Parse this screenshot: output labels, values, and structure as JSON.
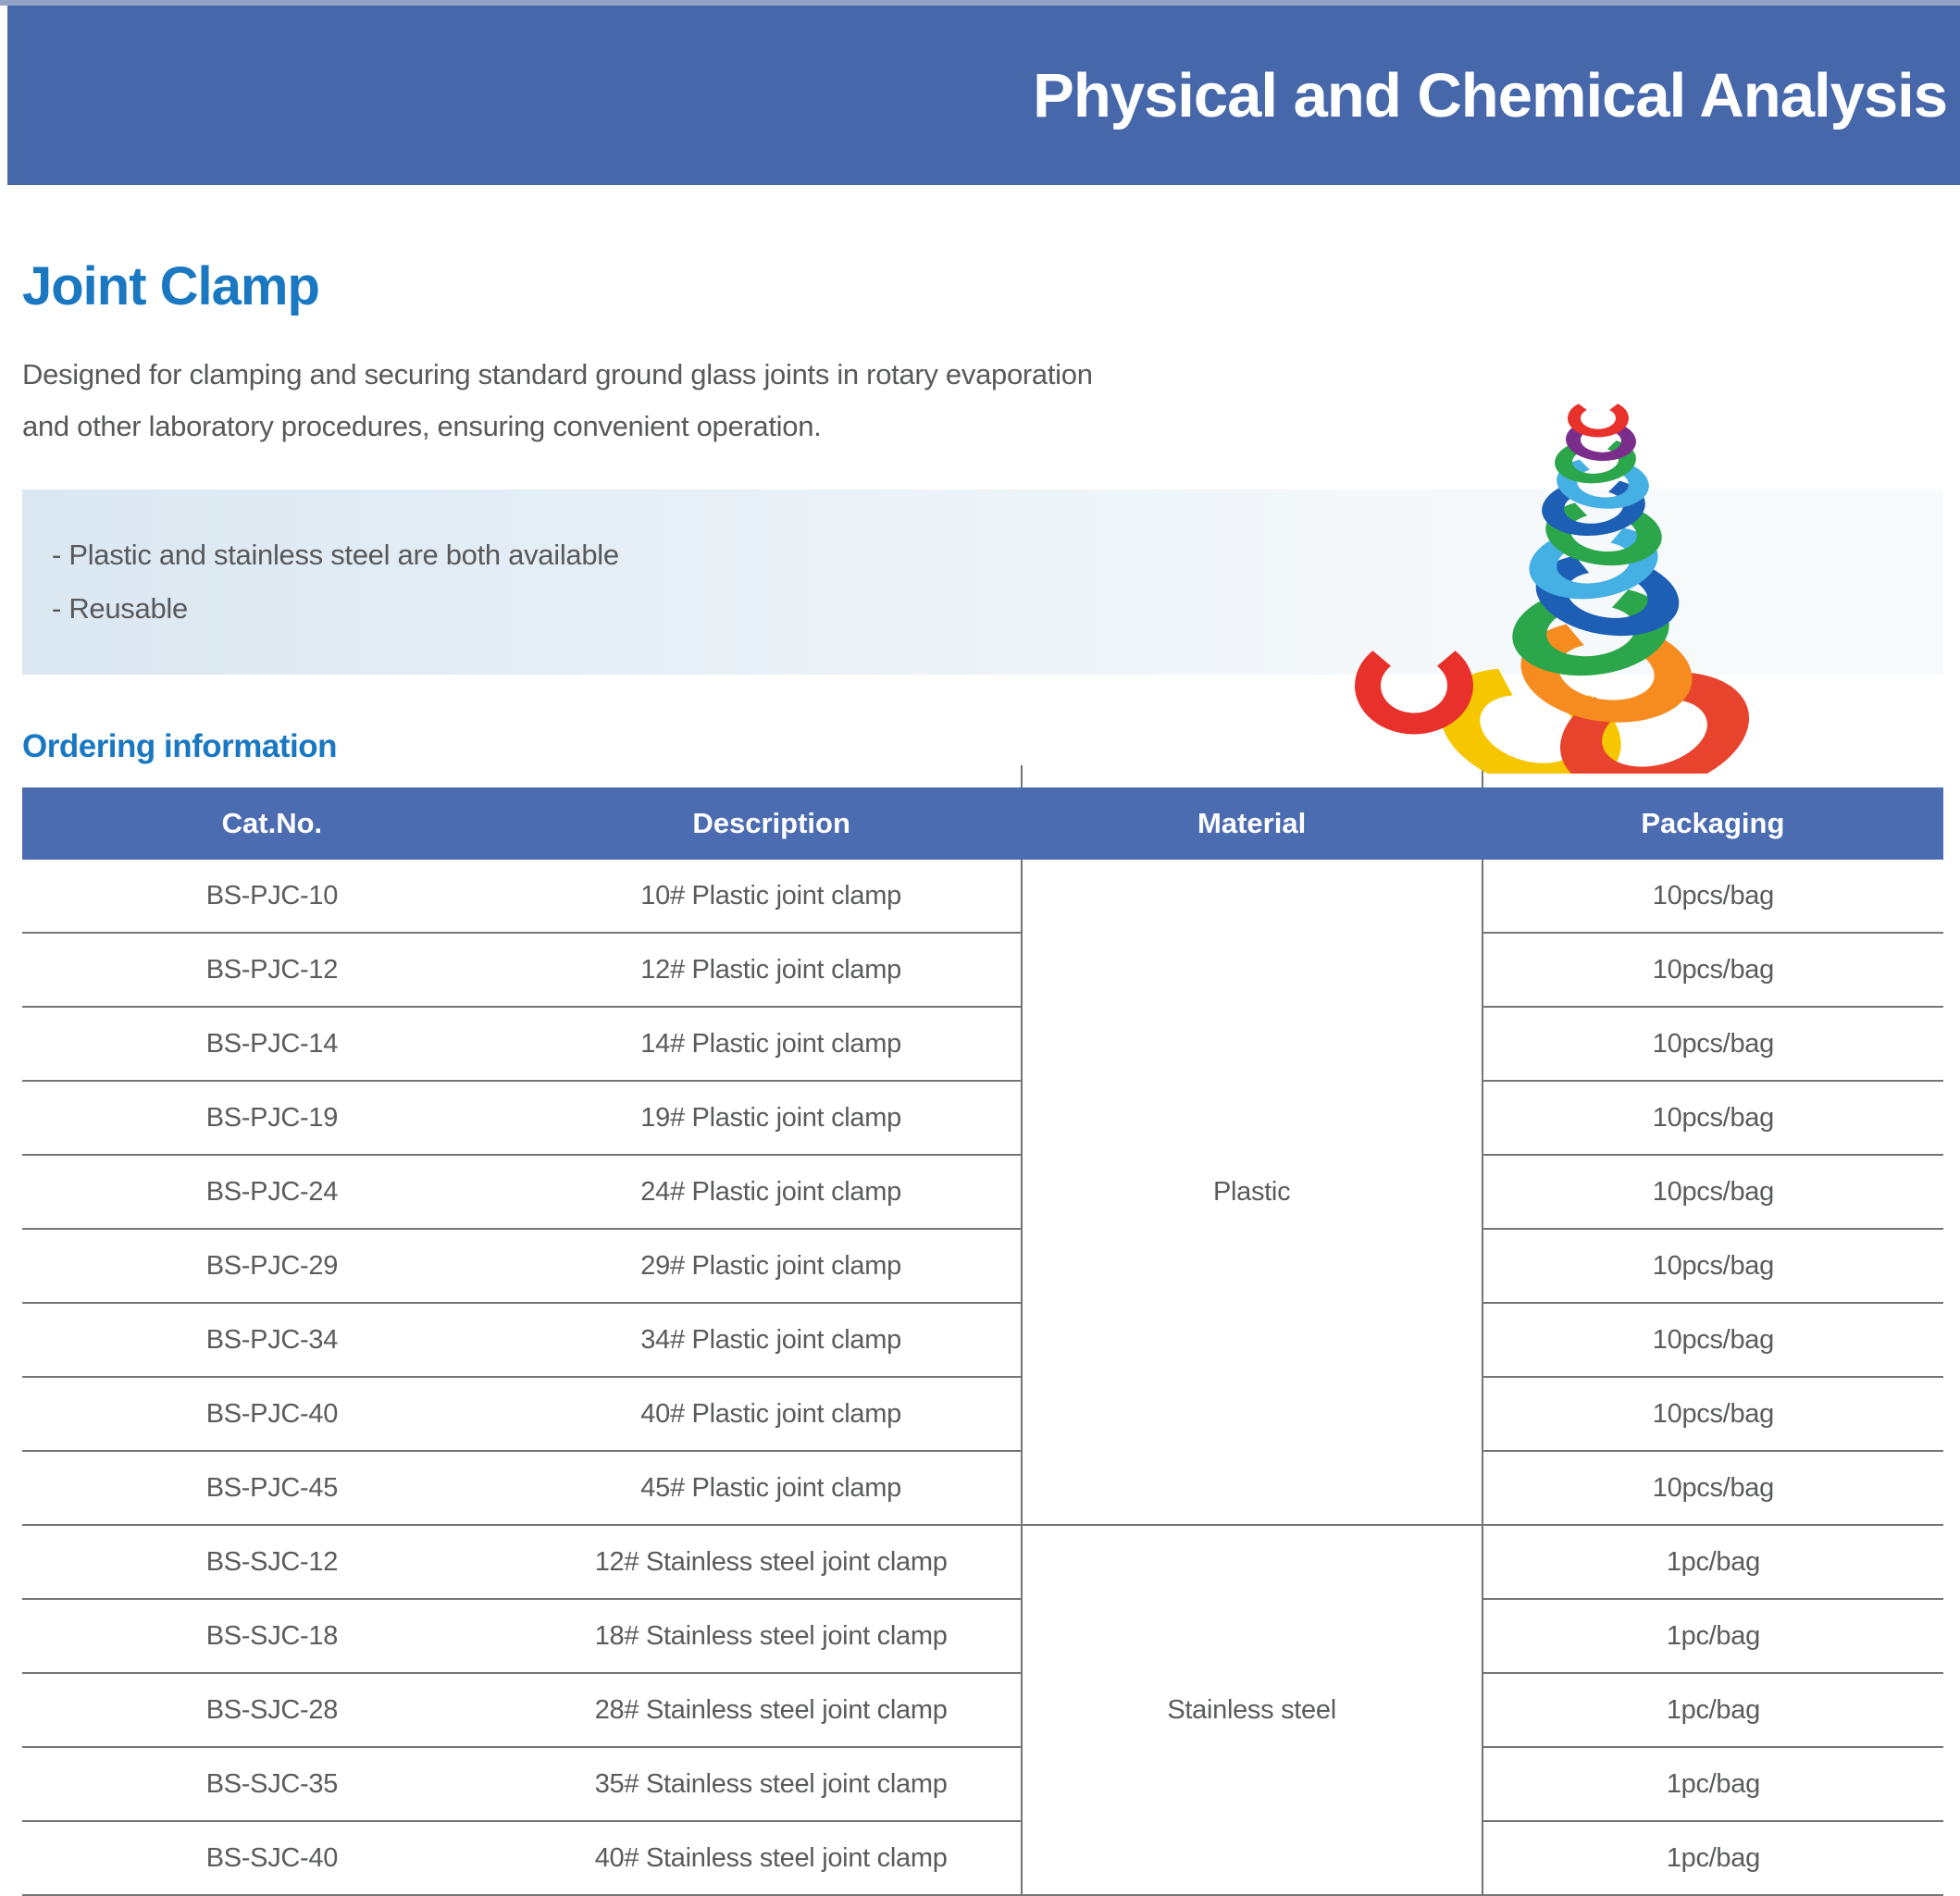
{
  "banner": {
    "title": "Physical and Chemical Analysis"
  },
  "section": {
    "title": "Joint Clamp",
    "description": [
      "Designed for clamping and securing standard ground glass joints in rotary evaporation",
      "and other laboratory procedures, ensuring convenient operation."
    ],
    "features": [
      "- Plastic and stainless steel are both available",
      "- Reusable"
    ]
  },
  "clamp_image": {
    "label": "stack of colorful plastic joint clamps with one red clamp in front",
    "stack_colors": [
      "#f6c700",
      "#e8432d",
      "#f68b1f",
      "#2ca64b",
      "#1d5fb5",
      "#45b0e4",
      "#2ca64b",
      "#1d5fb5",
      "#45b0e4",
      "#2ca64b",
      "#7b2d8b",
      "#e8312a"
    ],
    "single_color": "#e8312a"
  },
  "ordering": {
    "heading": "Ordering  information",
    "columns": [
      "Cat.No.",
      "Description",
      "Material",
      "Packaging"
    ],
    "groups": [
      {
        "material": "Plastic",
        "rows": [
          [
            "BS-PJC-10",
            "10# Plastic joint clamp",
            "10pcs/bag"
          ],
          [
            "BS-PJC-12",
            "12# Plastic joint clamp",
            "10pcs/bag"
          ],
          [
            "BS-PJC-14",
            "14# Plastic joint clamp",
            "10pcs/bag"
          ],
          [
            "BS-PJC-19",
            "19# Plastic joint clamp",
            "10pcs/bag"
          ],
          [
            "BS-PJC-24",
            "24# Plastic joint clamp",
            "10pcs/bag"
          ],
          [
            "BS-PJC-29",
            "29# Plastic joint clamp",
            "10pcs/bag"
          ],
          [
            "BS-PJC-34",
            "34# Plastic joint clamp",
            "10pcs/bag"
          ],
          [
            "BS-PJC-40",
            "40# Plastic joint clamp",
            "10pcs/bag"
          ],
          [
            "BS-PJC-45",
            "45# Plastic joint clamp",
            "10pcs/bag"
          ]
        ]
      },
      {
        "material": "Stainless steel",
        "rows": [
          [
            "BS-SJC-12",
            "12# Stainless steel joint clamp",
            "1pc/bag"
          ],
          [
            "BS-SJC-18",
            "18# Stainless steel joint clamp",
            "1pc/bag"
          ],
          [
            "BS-SJC-28",
            "28# Stainless steel joint clamp",
            "1pc/bag"
          ],
          [
            "BS-SJC-35",
            "35# Stainless steel joint clamp",
            "1pc/bag"
          ],
          [
            "BS-SJC-40",
            "40# Stainless steel joint clamp",
            "1pc/bag"
          ]
        ]
      }
    ]
  },
  "colors": {
    "banner_bg": "#4668ab",
    "table_header_bg": "#4b6cb0",
    "accent_blue": "#1a78c2",
    "top_strip": "#92a3c6",
    "table_border": "#757575",
    "text_gray": "#58595b"
  }
}
